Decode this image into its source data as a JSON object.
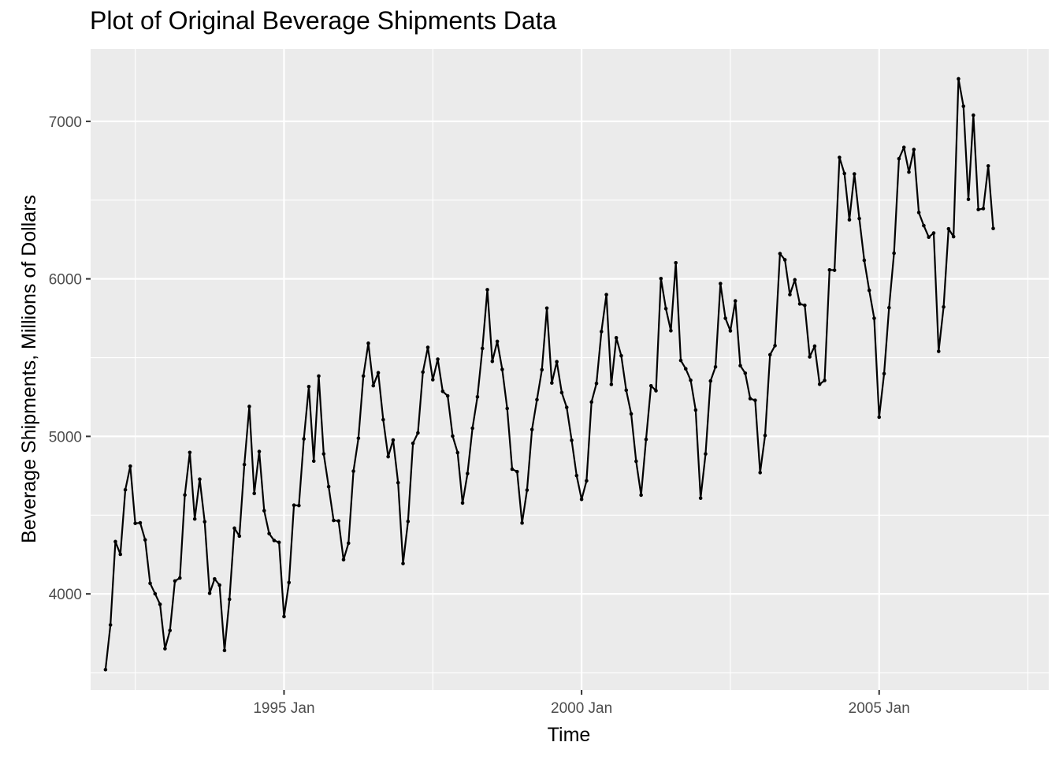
{
  "chart_data": {
    "type": "line",
    "title": "Plot of Original Beverage Shipments Data",
    "xlabel": "Time",
    "ylabel": "Beverage Shipments, Millions of Dollars",
    "x_start": "1992 Jan",
    "x_step": "month",
    "xlim": [
      1991.75,
      2007.85
    ],
    "ylim": [
      3390,
      7460
    ],
    "x_ticks": [
      {
        "value": 1995,
        "label": "1995 Jan"
      },
      {
        "value": 2000,
        "label": "2000 Jan"
      },
      {
        "value": 2005,
        "label": "2005 Jan"
      }
    ],
    "y_ticks": [
      {
        "value": 4000,
        "label": "4000"
      },
      {
        "value": 5000,
        "label": "5000"
      },
      {
        "value": 6000,
        "label": "6000"
      },
      {
        "value": 7000,
        "label": "7000"
      }
    ],
    "x_minor_ticks": [
      1992.5,
      1997.5,
      2002.5,
      2007.5
    ],
    "y_minor_ticks": [
      3500,
      4500,
      5500,
      6500
    ],
    "grid": true,
    "series": [
      {
        "name": "Beverage Shipments",
        "values": [
          3519,
          3803,
          4332,
          4251,
          4661,
          4811,
          4448,
          4451,
          4343,
          4067,
          4001,
          3934,
          3652,
          3768,
          4082,
          4101,
          4628,
          4898,
          4476,
          4728,
          4458,
          4004,
          4095,
          4056,
          3641,
          3966,
          4417,
          4367,
          4821,
          5190,
          4638,
          4904,
          4528,
          4383,
          4339,
          4327,
          3856,
          4072,
          4563,
          4561,
          4984,
          5316,
          4843,
          5383,
          4889,
          4681,
          4466,
          4463,
          4217,
          4322,
          4779,
          4988,
          5383,
          5591,
          5322,
          5404,
          5106,
          4871,
          4977,
          4706,
          4193,
          4460,
          4956,
          5022,
          5408,
          5565,
          5360,
          5490,
          5286,
          5257,
          5002,
          4897,
          4577,
          4764,
          5052,
          5251,
          5558,
          5931,
          5476,
          5603,
          5425,
          5177,
          4792,
          4776,
          4450,
          4659,
          5043,
          5233,
          5423,
          5814,
          5339,
          5474,
          5278,
          5184,
          4975,
          4751,
          4600,
          4718,
          5218,
          5336,
          5665,
          5900,
          5330,
          5626,
          5512,
          5293,
          5143,
          4842,
          4627,
          4981,
          5321,
          5290,
          6002,
          5811,
          5671,
          6102,
          5482,
          5429,
          5356,
          5167,
          4608,
          4889,
          5352,
          5441,
          5970,
          5750,
          5670,
          5860,
          5449,
          5401,
          5240,
          5229,
          4770,
          5006,
          5518,
          5576,
          6160,
          6121,
          5900,
          5994,
          5841,
          5832,
          5505,
          5573,
          5331,
          5355,
          6057,
          6055,
          6771,
          6669,
          6375,
          6666,
          6383,
          6118,
          5927,
          5750,
          5122,
          5398,
          5817,
          6163,
          6763,
          6835,
          6678,
          6821,
          6421,
          6338,
          6265,
          6291,
          5540,
          5822,
          6318,
          6268,
          7270,
          7096,
          6505,
          7039,
          6440,
          6446,
          6717,
          6320
        ]
      }
    ]
  }
}
